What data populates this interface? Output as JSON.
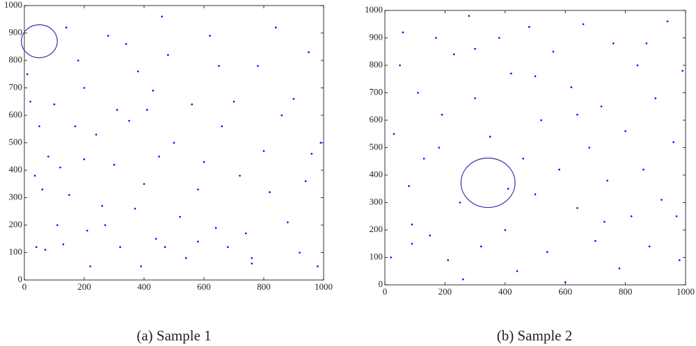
{
  "chart_data": [
    {
      "type": "scatter",
      "caption": "(a)  Sample 1",
      "color": "#0000ff",
      "x": [
        10,
        20,
        35,
        40,
        50,
        60,
        70,
        80,
        100,
        110,
        120,
        130,
        150,
        170,
        180,
        200,
        210,
        220,
        240,
        260,
        270,
        280,
        300,
        310,
        320,
        340,
        350,
        370,
        380,
        390,
        400,
        410,
        430,
        440,
        450,
        470,
        480,
        500,
        520,
        540,
        560,
        580,
        600,
        620,
        640,
        650,
        660,
        680,
        700,
        720,
        740,
        760,
        780,
        800,
        820,
        840,
        860,
        880,
        900,
        920,
        940,
        950,
        960,
        980,
        990,
        760,
        580,
        200,
        140,
        460
      ],
      "y": [
        750,
        650,
        380,
        120,
        560,
        330,
        110,
        450,
        640,
        200,
        410,
        130,
        310,
        560,
        800,
        700,
        180,
        50,
        530,
        270,
        200,
        890,
        420,
        620,
        120,
        860,
        580,
        260,
        760,
        50,
        350,
        620,
        690,
        150,
        450,
        120,
        820,
        500,
        230,
        80,
        640,
        330,
        430,
        890,
        190,
        780,
        560,
        120,
        650,
        380,
        170,
        60,
        780,
        470,
        320,
        920,
        600,
        210,
        660,
        100,
        360,
        830,
        460,
        50,
        500,
        80,
        140,
        440,
        920,
        960
      ],
      "circle": {
        "cx": 50,
        "cy": 870,
        "r": 60,
        "color": "#3333aa"
      },
      "xlim": [
        0,
        1000
      ],
      "ylim": [
        0,
        1000
      ],
      "xticks": [
        0,
        200,
        400,
        600,
        800,
        1000
      ],
      "yticks": [
        0,
        100,
        200,
        300,
        400,
        500,
        600,
        700,
        800,
        900,
        1000
      ]
    },
    {
      "type": "scatter",
      "caption": "(b)  Sample 2",
      "color": "#0000ff",
      "x": [
        20,
        30,
        50,
        60,
        80,
        90,
        110,
        130,
        150,
        170,
        190,
        210,
        230,
        250,
        260,
        280,
        300,
        320,
        350,
        380,
        400,
        420,
        440,
        460,
        480,
        500,
        520,
        540,
        560,
        580,
        600,
        620,
        640,
        660,
        680,
        700,
        720,
        740,
        760,
        780,
        800,
        820,
        840,
        860,
        880,
        900,
        920,
        940,
        960,
        980,
        990,
        970,
        640,
        300,
        180,
        500,
        870,
        730,
        410,
        90
      ],
      "y": [
        100,
        550,
        800,
        920,
        360,
        220,
        700,
        460,
        180,
        900,
        620,
        90,
        840,
        300,
        20,
        980,
        680,
        140,
        540,
        900,
        200,
        770,
        50,
        460,
        940,
        330,
        600,
        120,
        850,
        420,
        10,
        720,
        280,
        950,
        500,
        160,
        650,
        380,
        880,
        60,
        560,
        250,
        800,
        420,
        140,
        680,
        310,
        960,
        520,
        90,
        780,
        250,
        620,
        860,
        500,
        760,
        880,
        230,
        350,
        150
      ],
      "circle": {
        "cx": 343,
        "cy": 372,
        "r": 90,
        "color": "#3333aa"
      },
      "xlim": [
        0,
        1000
      ],
      "ylim": [
        0,
        1000
      ],
      "xticks": [
        0,
        200,
        400,
        600,
        800,
        1000
      ],
      "yticks": [
        0,
        100,
        200,
        300,
        400,
        500,
        600,
        700,
        800,
        900,
        1000
      ]
    }
  ]
}
